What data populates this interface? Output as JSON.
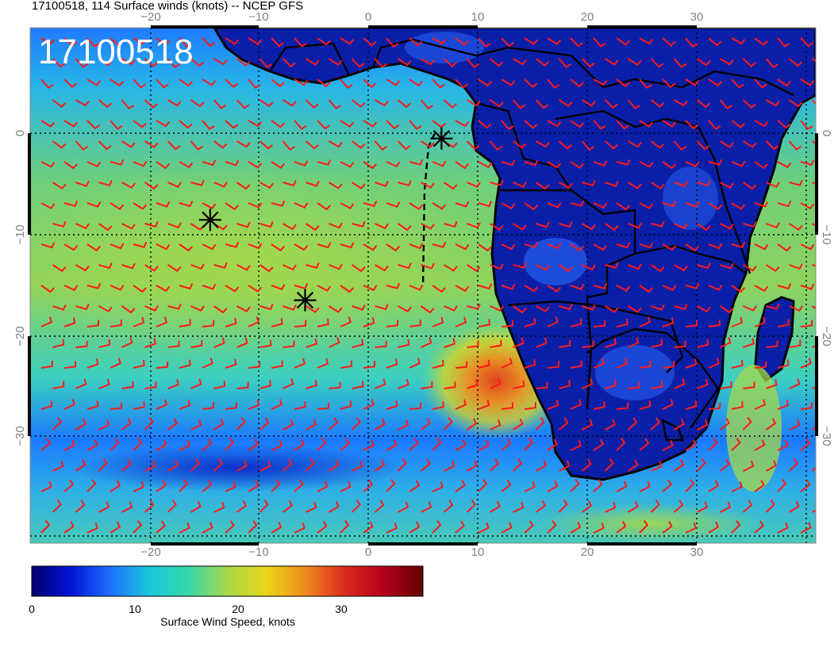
{
  "header": {
    "title": "17100518, 114 Surface winds (knots) -- NCEP GFS",
    "date_label": "17100518"
  },
  "map": {
    "lon_range": [
      -30,
      42
    ],
    "lat_range": [
      -40,
      10
    ],
    "top_lon_ticks": [
      "−20",
      "−10",
      "0",
      "10",
      "20",
      "30"
    ],
    "bottom_lon_ticks": [
      "−20",
      "−10",
      "0",
      "10",
      "20",
      "30"
    ],
    "left_lat_ticks": [
      "0",
      "−10",
      "−20",
      "−30"
    ],
    "right_lat_ticks": [
      "0",
      "−10",
      "−20",
      "−30"
    ],
    "barb_color": "#ff1a1a",
    "markers": [
      {
        "name": "star-marker-1",
        "lon": 6.7,
        "lat": 0.2
      },
      {
        "name": "star-marker-2",
        "lon": -14.5,
        "lat": -7.8
      },
      {
        "name": "star-marker-3",
        "lon": -5.8,
        "lat": -15.7
      }
    ]
  },
  "colorbar": {
    "label": "Surface Wind Speed, knots",
    "ticks": [
      "0",
      "10",
      "20",
      "30"
    ],
    "range": [
      0,
      38
    ],
    "colors": [
      "#00006e",
      "#0014d4",
      "#1f6fff",
      "#19c8dc",
      "#35d7a8",
      "#a6d84a",
      "#e8d616",
      "#f08a1e",
      "#dc2a1e",
      "#b4001e",
      "#640000"
    ]
  }
}
